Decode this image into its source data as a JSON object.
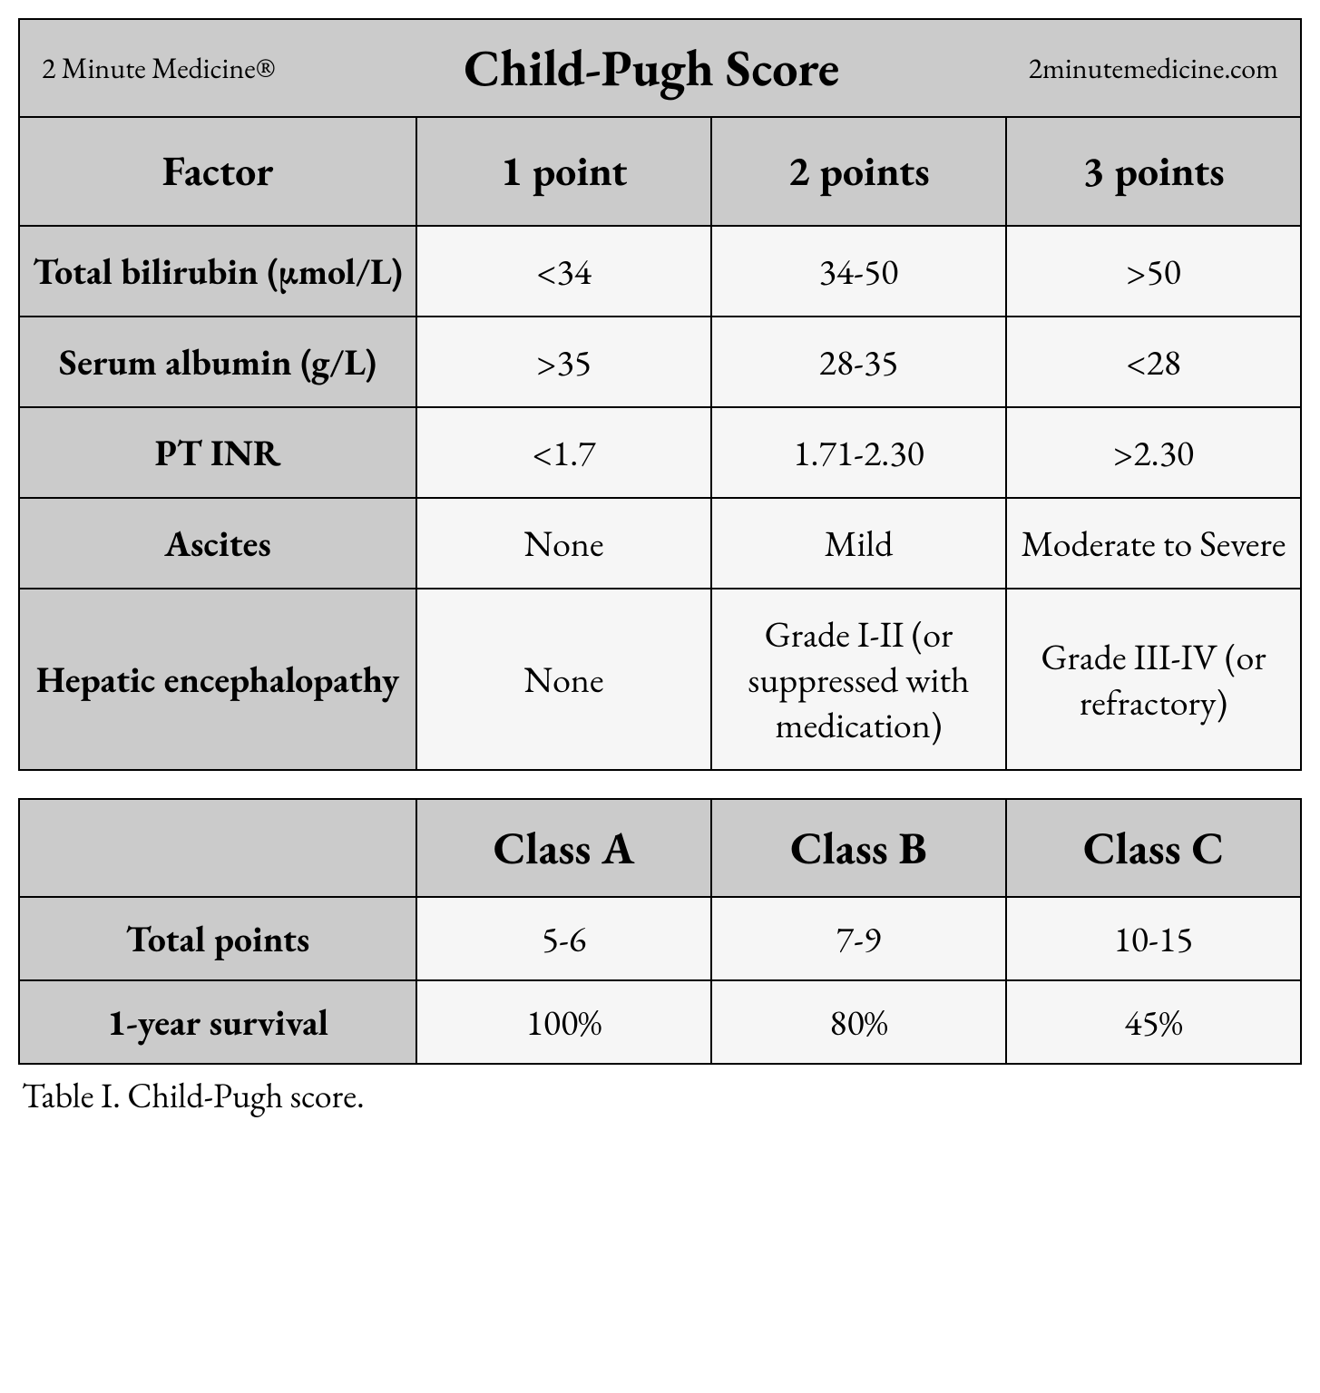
{
  "colors": {
    "header_bg": "#cbcbcb",
    "cell_bg": "#f6f6f6",
    "border": "#000000",
    "text": "#000000",
    "page_bg": "#ffffff"
  },
  "typography": {
    "family": "Garamond serif",
    "title_size_pt": 42,
    "header_size_pt": 34,
    "body_size_pt": 30,
    "caption_size_pt": 28
  },
  "title": {
    "left": "2 Minute Medicine®",
    "center": "Child-Pugh Score",
    "right": "2minutemedicine.com"
  },
  "factors_table": {
    "columns": [
      "Factor",
      "1 point",
      "2 points",
      "3 points"
    ],
    "rows": [
      {
        "label": "Total bilirubin (µmol/L)",
        "p1": "<34",
        "p2": "34-50",
        "p3": ">50"
      },
      {
        "label": "Serum albumin (g/L)",
        "p1": ">35",
        "p2": "28-35",
        "p3": "<28"
      },
      {
        "label": "PT INR",
        "p1": "<1.7",
        "p2": "1.71-2.30",
        "p3": ">2.30"
      },
      {
        "label": "Ascites",
        "p1": "None",
        "p2": "Mild",
        "p3": "Moderate to Severe"
      },
      {
        "label": "Hepatic encephalopathy",
        "p1": "None",
        "p2": "Grade I-II (or suppressed with medication)",
        "p3": "Grade III-IV (or refractory)"
      }
    ]
  },
  "class_table": {
    "columns": [
      "",
      "Class A",
      "Class B",
      "Class C"
    ],
    "rows": [
      {
        "label": "Total points",
        "a": "5-6",
        "b": "7-9",
        "c": "10-15"
      },
      {
        "label": "1-year survival",
        "a": "100%",
        "b": "80%",
        "c": "45%"
      }
    ]
  },
  "caption": "Table I. Child-Pugh score."
}
